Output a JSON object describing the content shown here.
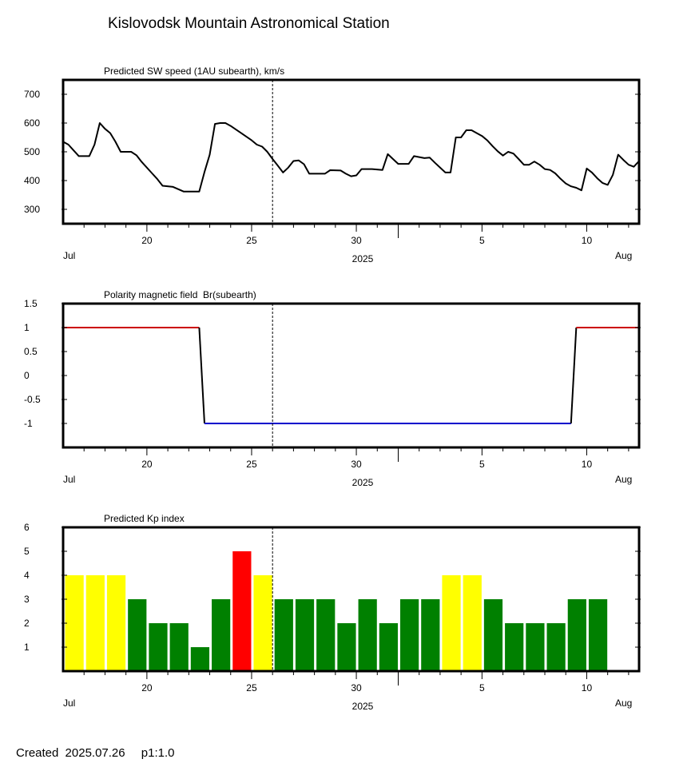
{
  "page": {
    "title": "Kislovodsk Mountain Astronomical Station",
    "created_label": "Created",
    "created_date": "2025.07.26",
    "page_label": "p1:1.0"
  },
  "date_axis": {
    "start_date": "2025-07-16",
    "end_date": "2025-08-12",
    "current_date": "2025-07-26",
    "day_ticks": [
      "20",
      "25",
      "30",
      "5",
      "10"
    ],
    "month_left": "Jul",
    "month_right": "Aug",
    "year": "2025"
  },
  "chart_data": [
    {
      "type": "line",
      "title": "Predicted SW speed (1AU subearth), km/s",
      "xlabel": "2025",
      "ylabel": "",
      "ylim": [
        250,
        750
      ],
      "yticks": [
        "300",
        "400",
        "500",
        "600",
        "700"
      ],
      "series": [
        {
          "color": "#000000",
          "points": [
            [
              "2025-07-16 00:00",
              535
            ],
            [
              "2025-07-16 06:00",
              525
            ],
            [
              "2025-07-16 12:00",
              505
            ],
            [
              "2025-07-16 18:00",
              485
            ],
            [
              "2025-07-17 06:00",
              485
            ],
            [
              "2025-07-17 12:00",
              525
            ],
            [
              "2025-07-17 18:00",
              600
            ],
            [
              "2025-07-18 00:00",
              580
            ],
            [
              "2025-07-18 06:00",
              565
            ],
            [
              "2025-07-18 12:00",
              535
            ],
            [
              "2025-07-18 18:00",
              500
            ],
            [
              "2025-07-19 06:00",
              500
            ],
            [
              "2025-07-19 12:00",
              488
            ],
            [
              "2025-07-19 18:00",
              465
            ],
            [
              "2025-07-20 06:00",
              425
            ],
            [
              "2025-07-20 12:00",
              405
            ],
            [
              "2025-07-20 18:00",
              382
            ],
            [
              "2025-07-21 06:00",
              378
            ],
            [
              "2025-07-21 12:00",
              370
            ],
            [
              "2025-07-21 18:00",
              362
            ],
            [
              "2025-07-22 12:00",
              362
            ],
            [
              "2025-07-22 18:00",
              430
            ],
            [
              "2025-07-23 00:00",
              490
            ],
            [
              "2025-07-23 06:00",
              597
            ],
            [
              "2025-07-23 12:00",
              600
            ],
            [
              "2025-07-23 18:00",
              600
            ],
            [
              "2025-07-24 00:00",
              590
            ],
            [
              "2025-07-24 12:00",
              565
            ],
            [
              "2025-07-25 00:00",
              540
            ],
            [
              "2025-07-25 06:00",
              525
            ],
            [
              "2025-07-25 12:00",
              518
            ],
            [
              "2025-07-25 18:00",
              500
            ],
            [
              "2025-07-26 00:00",
              475
            ],
            [
              "2025-07-26 06:00",
              452
            ],
            [
              "2025-07-26 12:00",
              428
            ],
            [
              "2025-07-26 18:00",
              445
            ],
            [
              "2025-07-27 00:00",
              468
            ],
            [
              "2025-07-27 06:00",
              470
            ],
            [
              "2025-07-27 12:00",
              457
            ],
            [
              "2025-07-27 18:00",
              424
            ],
            [
              "2025-07-28 12:00",
              424
            ],
            [
              "2025-07-28 18:00",
              436
            ],
            [
              "2025-07-29 06:00",
              435
            ],
            [
              "2025-07-29 12:00",
              424
            ],
            [
              "2025-07-29 18:00",
              415
            ],
            [
              "2025-07-30 00:00",
              418
            ],
            [
              "2025-07-30 06:00",
              440
            ],
            [
              "2025-07-30 18:00",
              440
            ],
            [
              "2025-07-31 06:00",
              437
            ],
            [
              "2025-07-31 12:00",
              492
            ],
            [
              "2025-07-31 18:00",
              475
            ],
            [
              "2025-08-01 00:00",
              458
            ],
            [
              "2025-08-01 12:00",
              458
            ],
            [
              "2025-08-01 18:00",
              485
            ],
            [
              "2025-08-02 06:00",
              478
            ],
            [
              "2025-08-02 12:00",
              480
            ],
            [
              "2025-08-02 18:00",
              462
            ],
            [
              "2025-08-03 06:00",
              428
            ],
            [
              "2025-08-03 12:00",
              428
            ],
            [
              "2025-08-03 18:00",
              550
            ],
            [
              "2025-08-04 00:00",
              550
            ],
            [
              "2025-08-04 06:00",
              575
            ],
            [
              "2025-08-04 12:00",
              575
            ],
            [
              "2025-08-04 18:00",
              565
            ],
            [
              "2025-08-05 00:00",
              555
            ],
            [
              "2025-08-05 06:00",
              540
            ],
            [
              "2025-08-05 12:00",
              520
            ],
            [
              "2025-08-05 18:00",
              502
            ],
            [
              "2025-08-06 00:00",
              487
            ],
            [
              "2025-08-06 06:00",
              500
            ],
            [
              "2025-08-06 12:00",
              494
            ],
            [
              "2025-08-06 18:00",
              475
            ],
            [
              "2025-08-07 00:00",
              455
            ],
            [
              "2025-08-07 06:00",
              455
            ],
            [
              "2025-08-07 12:00",
              466
            ],
            [
              "2025-08-07 18:00",
              455
            ],
            [
              "2025-08-08 00:00",
              440
            ],
            [
              "2025-08-08 06:00",
              437
            ],
            [
              "2025-08-08 12:00",
              425
            ],
            [
              "2025-08-08 18:00",
              406
            ],
            [
              "2025-08-09 00:00",
              390
            ],
            [
              "2025-08-09 06:00",
              380
            ],
            [
              "2025-08-09 12:00",
              375
            ],
            [
              "2025-08-09 18:00",
              366
            ],
            [
              "2025-08-10 00:00",
              442
            ],
            [
              "2025-08-10 06:00",
              428
            ],
            [
              "2025-08-10 12:00",
              408
            ],
            [
              "2025-08-10 18:00",
              392
            ],
            [
              "2025-08-11 00:00",
              385
            ],
            [
              "2025-08-11 06:00",
              420
            ],
            [
              "2025-08-11 12:00",
              490
            ],
            [
              "2025-08-11 18:00",
              472
            ],
            [
              "2025-08-12 00:00",
              455
            ],
            [
              "2025-08-12 06:00",
              448
            ],
            [
              "2025-08-12 12:00",
              468
            ]
          ]
        }
      ]
    },
    {
      "type": "line",
      "title": "Polarity magnetic field  Br(subearth)",
      "xlabel": "2025",
      "ylabel": "",
      "ylim": [
        -1.5,
        1.5
      ],
      "yticks": [
        "1.5",
        "1",
        "0.5",
        "0",
        "-0.5",
        "-1"
      ],
      "positive_color": "#cc0000",
      "negative_color": "#0000cc",
      "transition_color": "#000000",
      "segments": [
        {
          "from": "2025-07-16 00:00",
          "to": "2025-07-22 12:00",
          "value": 1
        },
        {
          "from": "2025-07-22 18:00",
          "to": "2025-08-09 06:00",
          "value": -1
        },
        {
          "from": "2025-08-09 12:00",
          "to": "2025-08-12 12:00",
          "value": 1
        }
      ]
    },
    {
      "type": "bar",
      "title": "Predicted Kp index",
      "xlabel": "2025",
      "ylabel": "",
      "ylim": [
        0,
        6
      ],
      "yticks": [
        "1",
        "2",
        "3",
        "4",
        "5",
        "6"
      ],
      "categories": [
        "2025-07-16",
        "2025-07-17",
        "2025-07-18",
        "2025-07-19",
        "2025-07-20",
        "2025-07-21",
        "2025-07-22",
        "2025-07-23",
        "2025-07-24",
        "2025-07-25",
        "2025-07-26",
        "2025-07-27",
        "2025-07-28",
        "2025-07-29",
        "2025-07-30",
        "2025-07-31",
        "2025-08-01",
        "2025-08-02",
        "2025-08-03",
        "2025-08-04",
        "2025-08-05",
        "2025-08-06",
        "2025-08-07",
        "2025-08-08",
        "2025-08-09",
        "2025-08-10"
      ],
      "values": [
        4,
        4,
        4,
        3,
        2,
        2,
        1,
        3,
        5,
        4,
        3,
        3,
        3,
        2,
        3,
        2,
        3,
        3,
        4,
        4,
        3,
        2,
        2,
        2,
        3,
        3
      ],
      "colors": {
        "green": "#008000",
        "yellow": "#ffff00",
        "red": "#ff0000"
      }
    }
  ]
}
